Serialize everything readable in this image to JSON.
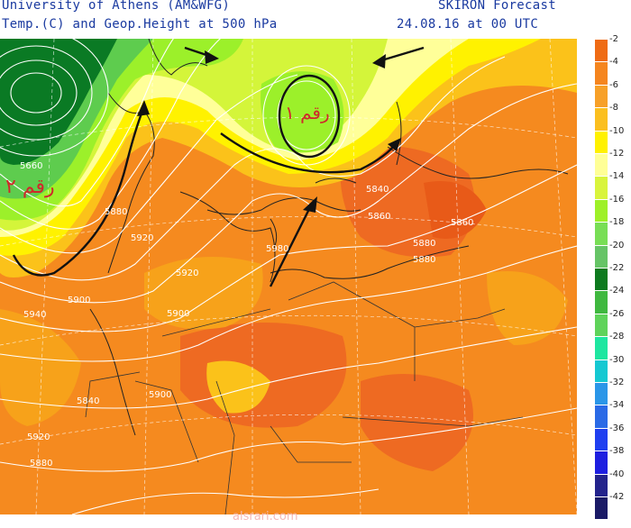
{
  "header": {
    "line1_left": "University of Athens (AM&WFG)",
    "line1_right": "SKIRON Forecast",
    "line2_left": "Temp.(C) and Geop.Height at 500 hPa",
    "line2_right": "24.08.16 at 00 UTC"
  },
  "annotations": {
    "label_1": "رقم ١",
    "label_2": "رقم ٢"
  },
  "contour_labels": [
    "5660",
    "5880",
    "5840",
    "5860",
    "5920",
    "5900",
    "5940",
    "5880",
    "5920",
    "5900",
    "5880",
    "5900",
    "5840",
    "5920",
    "5880",
    "5980",
    "5860"
  ],
  "colors": {
    "deep_orange": "#ee6a22",
    "orange": "#f58a1f",
    "orange_light": "#f7a21a",
    "yellow_orange": "#fbc21a",
    "yellow": "#fff200",
    "pale_yellow": "#ffff99",
    "yellow_green": "#d4f53a",
    "light_green": "#9cf02a",
    "green": "#5ecc4e",
    "dark_green": "#0a7a24"
  },
  "scale": [
    {
      "label": "-2",
      "color": "#ef6b14"
    },
    {
      "label": "-4",
      "color": "#f5851e"
    },
    {
      "label": "-6",
      "color": "#f7a028"
    },
    {
      "label": "-8",
      "color": "#fbbf1f"
    },
    {
      "label": "-10",
      "color": "#fff100"
    },
    {
      "label": "-12",
      "color": "#ffff96"
    },
    {
      "label": "-14",
      "color": "#d9f43c"
    },
    {
      "label": "-16",
      "color": "#9ef028"
    },
    {
      "label": "-18",
      "color": "#78de55"
    },
    {
      "label": "-20",
      "color": "#66c466"
    },
    {
      "label": "-22",
      "color": "#0d7a1e"
    },
    {
      "label": "-24",
      "color": "#3fb83f"
    },
    {
      "label": "-26",
      "color": "#5fd35a"
    },
    {
      "label": "-28",
      "color": "#1ee6a0"
    },
    {
      "label": "-30",
      "color": "#14c8d2"
    },
    {
      "label": "-32",
      "color": "#2a96e8"
    },
    {
      "label": "-34",
      "color": "#2a6ae6"
    },
    {
      "label": "-36",
      "color": "#1f3ff0"
    },
    {
      "label": "-38",
      "color": "#1d1ee0"
    },
    {
      "label": "-40",
      "color": "#23238c"
    },
    {
      "label": "-42",
      "color": "#1a1a66"
    }
  ],
  "watermark": "alsrari.com"
}
